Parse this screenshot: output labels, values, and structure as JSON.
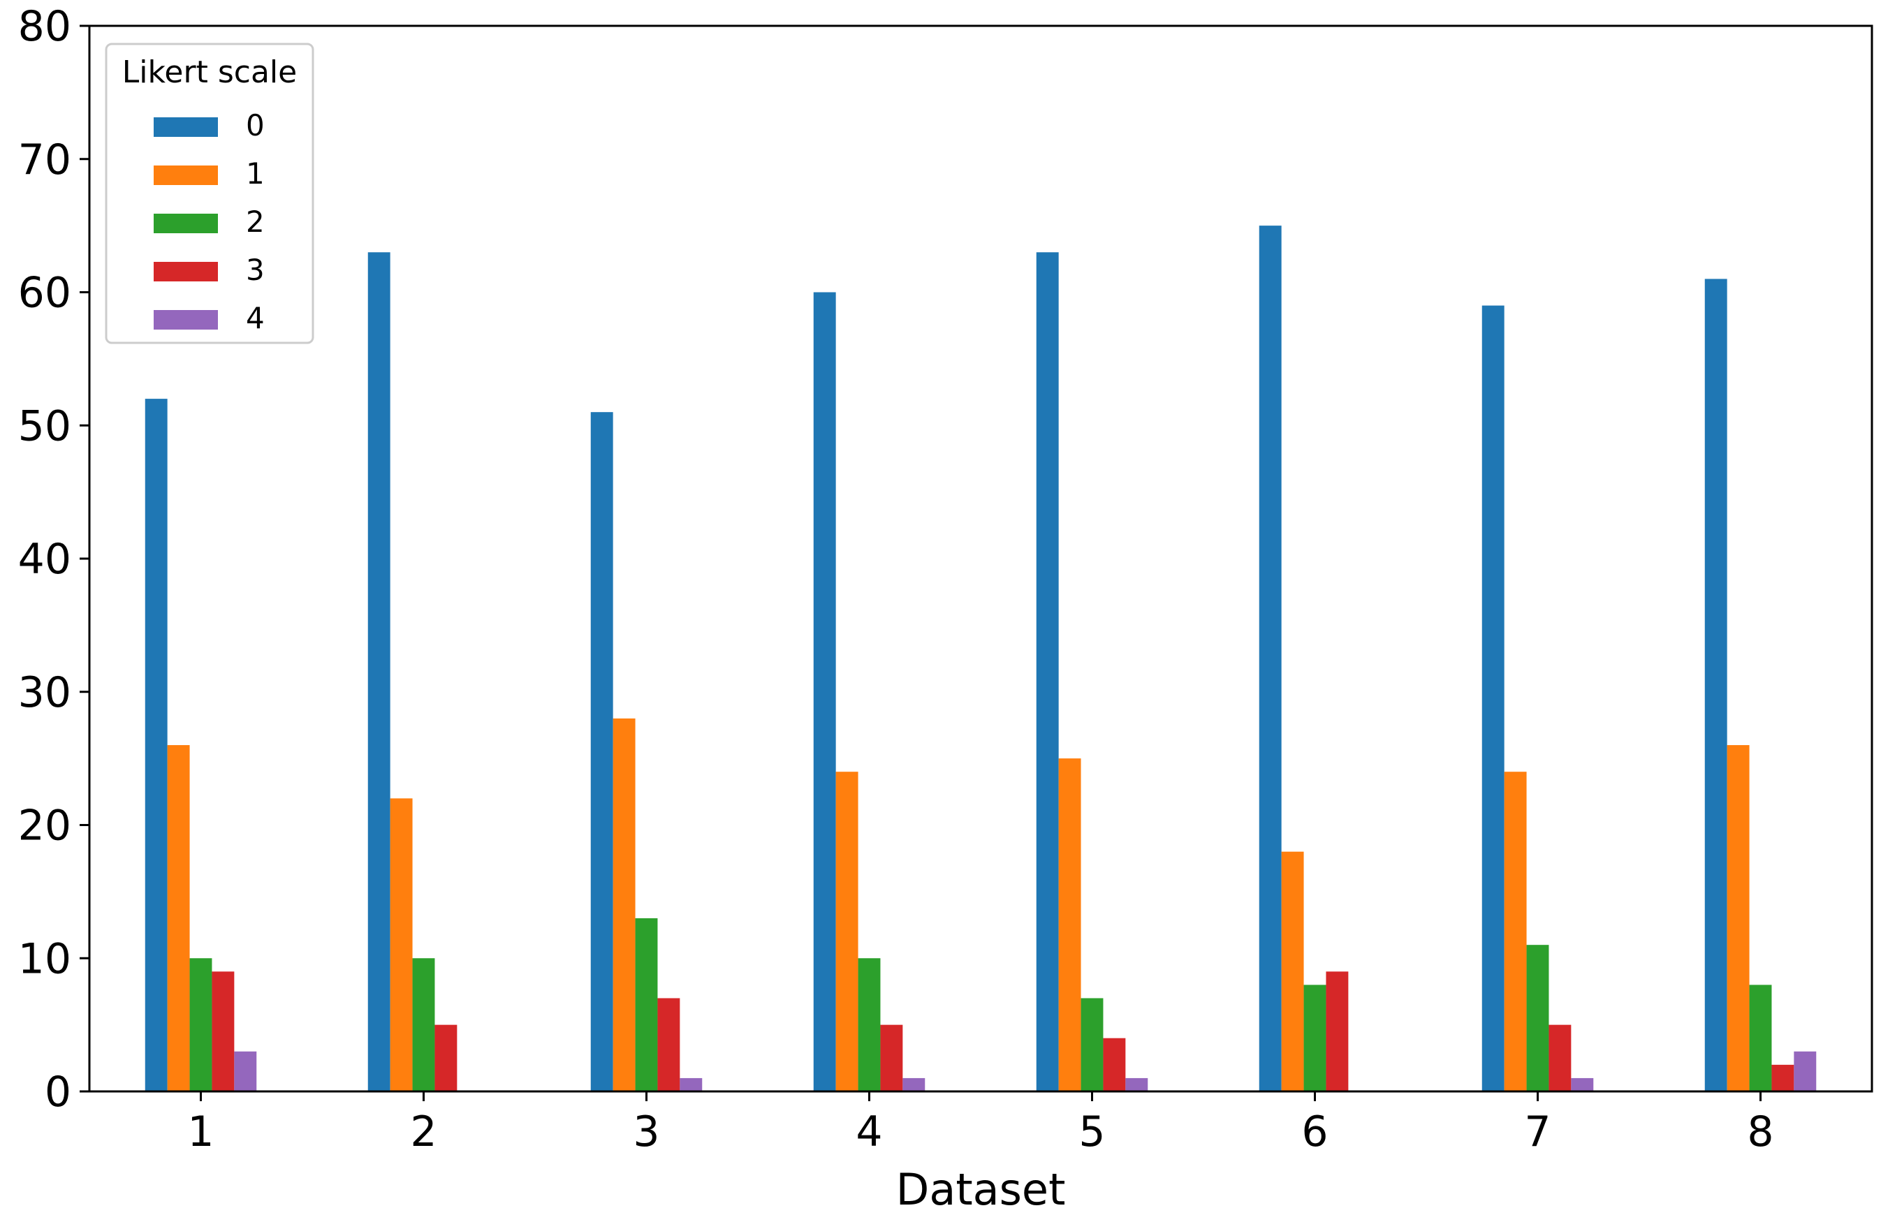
{
  "chart_data": {
    "type": "bar",
    "title": "",
    "xlabel": "Dataset",
    "ylabel": "",
    "ylim": [
      0,
      80
    ],
    "yticks": [
      0,
      10,
      20,
      30,
      40,
      50,
      60,
      70,
      80
    ],
    "categories": [
      "1",
      "2",
      "3",
      "4",
      "5",
      "6",
      "7",
      "8"
    ],
    "grid": false,
    "legend": {
      "title": "Likert scale",
      "position": "top-left"
    },
    "series": [
      {
        "name": "0",
        "color": "#1f77b4",
        "values": [
          52,
          63,
          51,
          60,
          63,
          65,
          59,
          61
        ]
      },
      {
        "name": "1",
        "color": "#ff7f0e",
        "values": [
          26,
          22,
          28,
          24,
          25,
          18,
          24,
          26
        ]
      },
      {
        "name": "2",
        "color": "#2ca02c",
        "values": [
          10,
          10,
          13,
          10,
          7,
          8,
          11,
          8
        ]
      },
      {
        "name": "3",
        "color": "#d62728",
        "values": [
          9,
          5,
          7,
          5,
          4,
          9,
          5,
          2
        ]
      },
      {
        "name": "4",
        "color": "#9467bd",
        "values": [
          3,
          0,
          1,
          1,
          1,
          0,
          1,
          3
        ]
      }
    ]
  }
}
